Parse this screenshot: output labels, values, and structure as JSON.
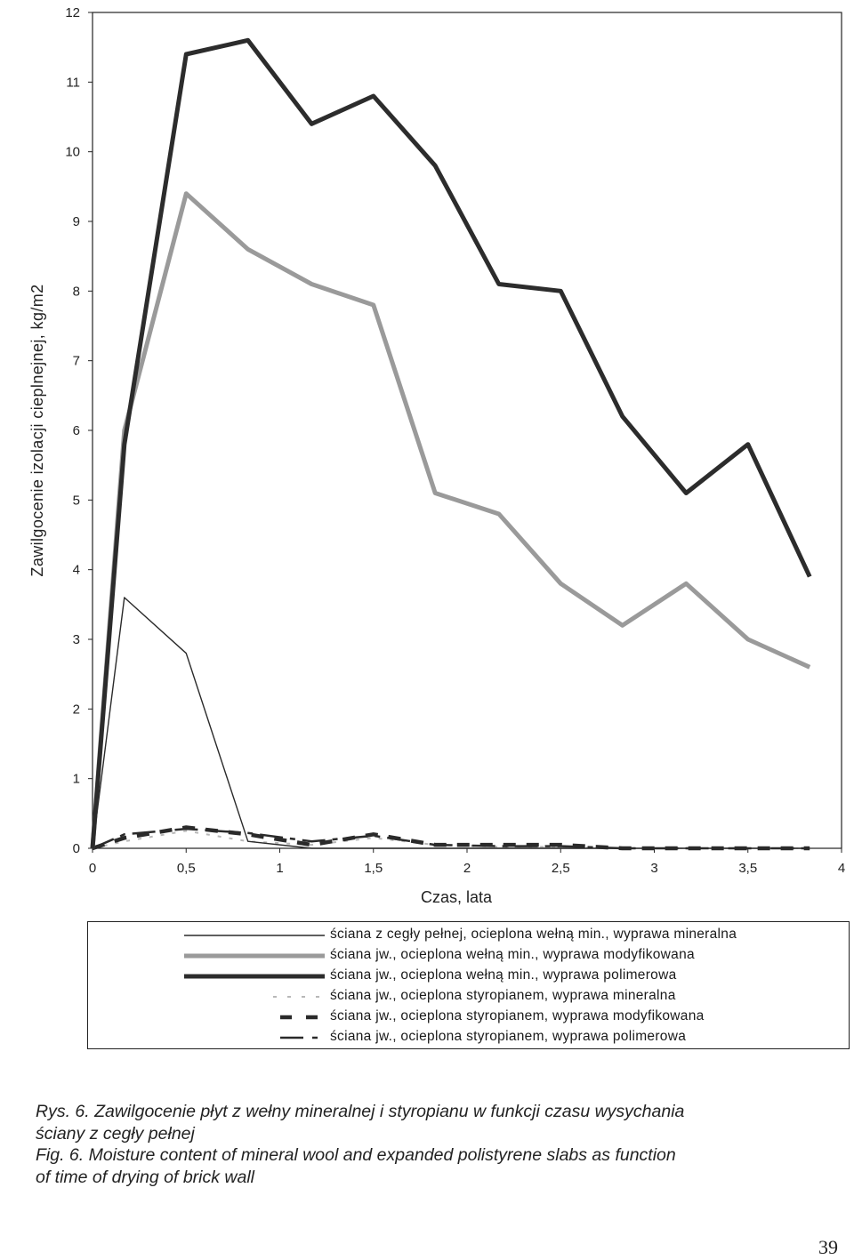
{
  "chart_data": {
    "type": "line",
    "xlabel": "Czas, lata",
    "ylabel": "Zawilgocenie  izolacji cieplnejnej, kg/m2",
    "xlim": [
      0,
      4
    ],
    "ylim": [
      0,
      12
    ],
    "x_ticks": [
      "0",
      "0,5",
      "1",
      "1,5",
      "2",
      "2,5",
      "3",
      "3,5",
      "4"
    ],
    "y_ticks": [
      "0",
      "1",
      "2",
      "3",
      "4",
      "5",
      "6",
      "7",
      "8",
      "9",
      "10",
      "11",
      "12"
    ],
    "legend_position": "bottom (boxed, below plot)",
    "grid": false,
    "series": [
      {
        "name": "ściana z cegły pełnej, ocieplona wełną min., wyprawa mineralna",
        "style": "thin-solid",
        "color": "#2a2a2a",
        "points": [
          [
            0,
            0
          ],
          [
            0.17,
            3.6
          ],
          [
            0.5,
            2.8
          ],
          [
            0.83,
            0.1
          ],
          [
            1.17,
            0
          ],
          [
            1.5,
            0
          ],
          [
            1.83,
            0
          ],
          [
            2.17,
            0
          ],
          [
            2.5,
            0
          ],
          [
            2.83,
            0
          ],
          [
            3.17,
            0
          ],
          [
            3.5,
            0
          ],
          [
            3.83,
            0
          ]
        ]
      },
      {
        "name": "ściana jw., ocieplona wełną min., wyprawa modyfikowana",
        "style": "thick-gray",
        "color": "#9a9a9a",
        "points": [
          [
            0,
            0
          ],
          [
            0.17,
            6.0
          ],
          [
            0.5,
            9.4
          ],
          [
            0.83,
            8.6
          ],
          [
            1.17,
            8.1
          ],
          [
            1.5,
            7.8
          ],
          [
            1.83,
            5.1
          ],
          [
            2.17,
            4.8
          ],
          [
            2.5,
            3.8
          ],
          [
            2.83,
            3.2
          ],
          [
            3.17,
            3.8
          ],
          [
            3.5,
            3.0
          ],
          [
            3.83,
            2.6
          ]
        ]
      },
      {
        "name": "ściana jw., ocieplona wełną min., wyprawa polimerowa",
        "style": "thick-black",
        "color": "#2c2c2c",
        "points": [
          [
            0,
            0
          ],
          [
            0.17,
            5.8
          ],
          [
            0.5,
            11.4
          ],
          [
            0.83,
            11.6
          ],
          [
            1.17,
            10.4
          ],
          [
            1.5,
            10.8
          ],
          [
            1.83,
            9.8
          ],
          [
            2.17,
            8.1
          ],
          [
            2.5,
            8.0
          ],
          [
            2.83,
            6.2
          ],
          [
            3.17,
            5.1
          ],
          [
            3.5,
            5.8
          ],
          [
            3.83,
            3.9
          ]
        ]
      },
      {
        "name": "ściana jw., ocieplona styropianem, wyprawa mineralna",
        "style": "light-dotted",
        "color": "#b8b8b8",
        "points": [
          [
            0,
            0
          ],
          [
            0.17,
            0.1
          ],
          [
            0.5,
            0.25
          ],
          [
            0.83,
            0.1
          ],
          [
            1.17,
            0.05
          ],
          [
            1.5,
            0.15
          ],
          [
            1.83,
            0.05
          ],
          [
            2.17,
            0.02
          ],
          [
            2.5,
            0.02
          ],
          [
            2.83,
            0
          ],
          [
            3.17,
            0
          ],
          [
            3.5,
            0
          ],
          [
            3.83,
            0
          ]
        ]
      },
      {
        "name": "ściana jw., ocieplona styropianem, wyprawa modyfikowana",
        "style": "thick-dashed",
        "color": "#2a2a2a",
        "points": [
          [
            0,
            0
          ],
          [
            0.17,
            0.15
          ],
          [
            0.5,
            0.3
          ],
          [
            0.83,
            0.2
          ],
          [
            1.17,
            0.05
          ],
          [
            1.5,
            0.2
          ],
          [
            1.83,
            0.05
          ],
          [
            2.17,
            0.05
          ],
          [
            2.5,
            0.05
          ],
          [
            2.83,
            0
          ],
          [
            3.17,
            0
          ],
          [
            3.5,
            0
          ],
          [
            3.83,
            0
          ]
        ]
      },
      {
        "name": "ściana jw., ocieplona styropianem, wyprawa polimerowa",
        "style": "long-short-dash",
        "color": "#2a2a2a",
        "points": [
          [
            0,
            0
          ],
          [
            0.17,
            0.2
          ],
          [
            0.5,
            0.28
          ],
          [
            0.83,
            0.22
          ],
          [
            1.17,
            0.1
          ],
          [
            1.5,
            0.18
          ],
          [
            1.83,
            0.05
          ],
          [
            2.17,
            0.03
          ],
          [
            2.5,
            0.03
          ],
          [
            2.83,
            0
          ],
          [
            3.17,
            0
          ],
          [
            3.5,
            0
          ],
          [
            3.83,
            0
          ]
        ]
      }
    ]
  },
  "caption": {
    "line1": "Rys. 6. Zawilgocenie płyt z wełny mineralnej i styropianu w funkcji czasu wysychania",
    "line2": "ściany z cegły pełnej",
    "line3": "Fig. 6. Moisture content of mineral wool and expanded polistyrene slabs as function",
    "line4": "of time of drying of brick wall"
  },
  "page_number": "39"
}
